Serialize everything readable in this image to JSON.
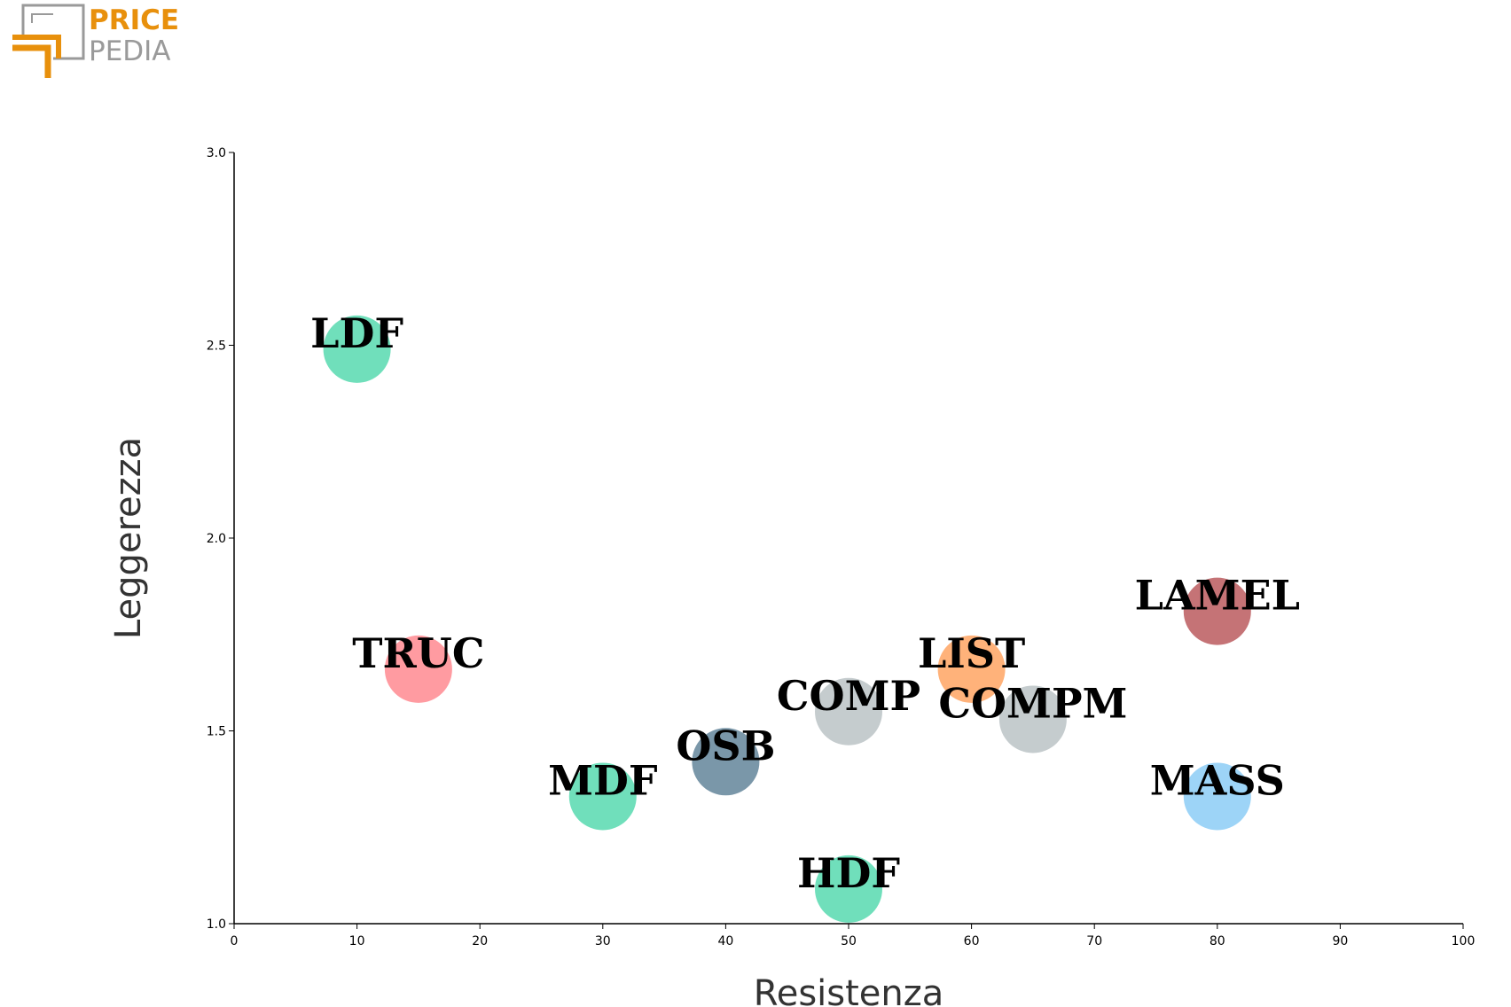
{
  "logo": {
    "line1": "PRICE",
    "line2": "PEDIA",
    "colors": {
      "accent": "#E8900C",
      "gray": "#9A9A9A"
    }
  },
  "chart_data": {
    "type": "scatter",
    "xlabel": "Resistenza",
    "ylabel": "Leggerezza",
    "xlim": [
      0,
      100
    ],
    "ylim": [
      1.0,
      3.0
    ],
    "xticks": [
      "0",
      "10",
      "20",
      "30",
      "40",
      "50",
      "60",
      "70",
      "80",
      "90",
      "100"
    ],
    "yticks": [
      "1.0",
      "1.5",
      "2.0",
      "2.5",
      "3.0"
    ],
    "grid": false,
    "points": [
      {
        "label": "LDF",
        "x": 10,
        "y": 2.49,
        "color": "#48D6A8"
      },
      {
        "label": "TRUC",
        "x": 15,
        "y": 1.66,
        "color": "#FF7F86"
      },
      {
        "label": "MDF",
        "x": 30,
        "y": 1.33,
        "color": "#48D6A8"
      },
      {
        "label": "OSB",
        "x": 40,
        "y": 1.42,
        "color": "#557A91"
      },
      {
        "label": "COMP",
        "x": 50,
        "y": 1.55,
        "color": "#B5BEC0"
      },
      {
        "label": "HDF",
        "x": 50,
        "y": 1.09,
        "color": "#48D6A8"
      },
      {
        "label": "LIST",
        "x": 60,
        "y": 1.66,
        "color": "#FF9C55"
      },
      {
        "label": "COMPM",
        "x": 65,
        "y": 1.53,
        "color": "#B5BEC0"
      },
      {
        "label": "LAMEL",
        "x": 80,
        "y": 1.81,
        "color": "#B54B50"
      },
      {
        "label": "MASS",
        "x": 80,
        "y": 1.33,
        "color": "#82C8F5"
      }
    ]
  }
}
